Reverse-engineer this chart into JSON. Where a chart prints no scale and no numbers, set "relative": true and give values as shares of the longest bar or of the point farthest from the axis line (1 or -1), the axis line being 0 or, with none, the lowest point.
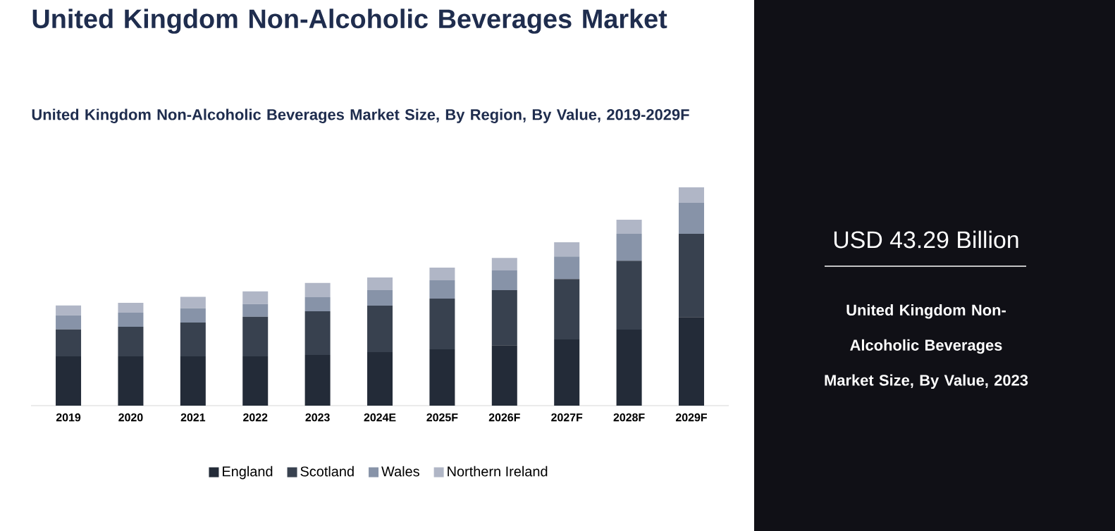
{
  "chart_data": {
    "type": "bar",
    "title": "United Kingdom Non-Alcoholic Beverages Market",
    "subtitle": "United Kingdom Non-Alcoholic Beverages Market Size, By Region, By Value, 2019-2029F",
    "categories": [
      "2019",
      "2020",
      "2021",
      "2022",
      "2023",
      "2024E",
      "2025F",
      "2026F",
      "2027F",
      "2028F",
      "2029F"
    ],
    "stacked": true,
    "relative": true,
    "legend": "bottom",
    "series": [
      {
        "name": "England",
        "color": "#232b38",
        "values": [
          0.226,
          0.226,
          0.226,
          0.226,
          0.232,
          0.245,
          0.258,
          0.277,
          0.303,
          0.348,
          0.406
        ]
      },
      {
        "name": "Scotland",
        "color": "#38414f",
        "values": [
          0.123,
          0.135,
          0.155,
          0.181,
          0.2,
          0.213,
          0.232,
          0.252,
          0.277,
          0.316,
          0.381
        ]
      },
      {
        "name": "Wales",
        "color": "#8793a8",
        "values": [
          0.065,
          0.065,
          0.065,
          0.058,
          0.065,
          0.071,
          0.084,
          0.09,
          0.103,
          0.123,
          0.142
        ]
      },
      {
        "name": "Northern Ireland",
        "color": "#b0b6c6",
        "values": [
          0.045,
          0.045,
          0.052,
          0.058,
          0.065,
          0.058,
          0.058,
          0.058,
          0.065,
          0.065,
          0.071
        ]
      }
    ],
    "annotations": [
      "USD 43.29 Billion",
      "United Kingdom Non-Alcoholic Beverages Market Size, By Value, 2023"
    ]
  }
}
